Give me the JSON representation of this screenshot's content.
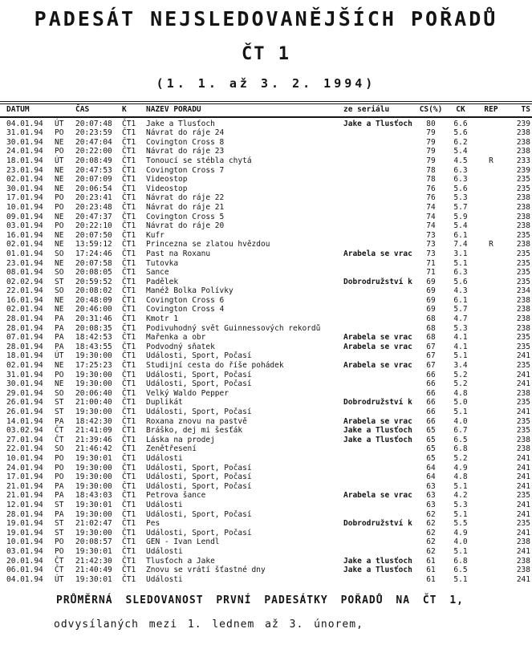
{
  "document": {
    "title_line1": "PADESÁT NEJSLEDOVANĚJŠÍCH POŘADŮ",
    "title_line2": "ČT 1",
    "title_line3": "(1. 1. až 3. 2. 1994)"
  },
  "footer": {
    "line1": "PRŮMĚRNÁ SLEDOVANOST PRVNÍ PADESÁTKY POŘADŮ NA ČT 1,",
    "line2": "odvysílaných mezi 1. lednem až 3. únorem,"
  },
  "table": {
    "columns": {
      "datum": "DATUM",
      "den": "",
      "cas": "ČAS",
      "k": "K",
      "nazev": "NAZEV POŘADU",
      "serial": "ze seriálu",
      "cs": "CS(%)",
      "ck": "CK",
      "rep": "REP",
      "ts": "TS"
    },
    "rows": [
      {
        "datum": "04.01.94",
        "den": "ÚT",
        "cas": "20:07:48",
        "k": "ČT1",
        "nazev": "Jake a Tlusťoch",
        "serial": "Jake a Tlusťoch",
        "cs": "80",
        "ck": "6.6",
        "rep": "",
        "ts": "239"
      },
      {
        "datum": "31.01.94",
        "den": "PO",
        "cas": "20:23:59",
        "k": "ČT1",
        "nazev": "Návrat do ráje 24",
        "serial": "",
        "cs": "79",
        "ck": "5.6",
        "rep": "",
        "ts": "238"
      },
      {
        "datum": "30.01.94",
        "den": "NE",
        "cas": "20:47:04",
        "k": "ČT1",
        "nazev": "Covington Cross 8",
        "serial": "",
        "cs": "79",
        "ck": "6.2",
        "rep": "",
        "ts": "238"
      },
      {
        "datum": "24.01.94",
        "den": "PO",
        "cas": "20:22:00",
        "k": "ČT1",
        "nazev": "Návrat do ráje 23",
        "serial": "",
        "cs": "79",
        "ck": "5.4",
        "rep": "",
        "ts": "238"
      },
      {
        "datum": "18.01.94",
        "den": "ÚT",
        "cas": "20:08:49",
        "k": "ČT1",
        "nazev": "Tonoucí se stébla chytá",
        "serial": "",
        "cs": "79",
        "ck": "4.5",
        "rep": "R",
        "ts": "233"
      },
      {
        "datum": "23.01.94",
        "den": "NE",
        "cas": "20:47:53",
        "k": "ČT1",
        "nazev": "Covington Cross 7",
        "serial": "",
        "cs": "78",
        "ck": "6.3",
        "rep": "",
        "ts": "239"
      },
      {
        "datum": "02.01.94",
        "den": "NE",
        "cas": "20:07:09",
        "k": "ČT1",
        "nazev": "Videostop",
        "serial": "",
        "cs": "78",
        "ck": "6.3",
        "rep": "",
        "ts": "235"
      },
      {
        "datum": "30.01.94",
        "den": "NE",
        "cas": "20:06:54",
        "k": "ČT1",
        "nazev": "Videostop",
        "serial": "",
        "cs": "76",
        "ck": "5.6",
        "rep": "",
        "ts": "235"
      },
      {
        "datum": "17.01.94",
        "den": "PO",
        "cas": "20:23:41",
        "k": "ČT1",
        "nazev": "Návrat do ráje 22",
        "serial": "",
        "cs": "76",
        "ck": "5.3",
        "rep": "",
        "ts": "238"
      },
      {
        "datum": "10.01.94",
        "den": "PO",
        "cas": "20:23:48",
        "k": "ČT1",
        "nazev": "Návrat do ráje 21",
        "serial": "",
        "cs": "74",
        "ck": "5.7",
        "rep": "",
        "ts": "238"
      },
      {
        "datum": "09.01.94",
        "den": "NE",
        "cas": "20:47:37",
        "k": "ČT1",
        "nazev": "Covington Cross 5",
        "serial": "",
        "cs": "74",
        "ck": "5.9",
        "rep": "",
        "ts": "238"
      },
      {
        "datum": "03.01.94",
        "den": "PO",
        "cas": "20:22:10",
        "k": "ČT1",
        "nazev": "Návrat do ráje 20",
        "serial": "",
        "cs": "74",
        "ck": "5.4",
        "rep": "",
        "ts": "238"
      },
      {
        "datum": "16.01.94",
        "den": "NE",
        "cas": "20:07:50",
        "k": "ČT1",
        "nazev": "Kufr",
        "serial": "",
        "cs": "73",
        "ck": "6.1",
        "rep": "",
        "ts": "235"
      },
      {
        "datum": "02.01.94",
        "den": "NE",
        "cas": "13:59:12",
        "k": "ČT1",
        "nazev": "Princezna se zlatou hvězdou",
        "serial": "",
        "cs": "73",
        "ck": "7.4",
        "rep": "R",
        "ts": "238"
      },
      {
        "datum": "01.01.94",
        "den": "SO",
        "cas": "17:24:46",
        "k": "ČT1",
        "nazev": "Past na Roxanu",
        "serial": "Arabela se vrac",
        "cs": "73",
        "ck": "3.1",
        "rep": "",
        "ts": "235"
      },
      {
        "datum": "23.01.94",
        "den": "NE",
        "cas": "20:07:58",
        "k": "ČT1",
        "nazev": "Tutovka",
        "serial": "",
        "cs": "71",
        "ck": "5.1",
        "rep": "",
        "ts": "235"
      },
      {
        "datum": "08.01.94",
        "den": "SO",
        "cas": "20:08:05",
        "k": "ČT1",
        "nazev": "Šance",
        "serial": "",
        "cs": "71",
        "ck": "6.3",
        "rep": "",
        "ts": "235"
      },
      {
        "datum": "02.02.94",
        "den": "ST",
        "cas": "20:59:52",
        "k": "ČT1",
        "nazev": "Padělek",
        "serial": "Dobrodružství k",
        "cs": "69",
        "ck": "5.6",
        "rep": "",
        "ts": "235"
      },
      {
        "datum": "22.01.94",
        "den": "SO",
        "cas": "20:08:02",
        "k": "ČT1",
        "nazev": "Manéž Bolka Polívky",
        "serial": "",
        "cs": "69",
        "ck": "4.3",
        "rep": "",
        "ts": "234"
      },
      {
        "datum": "16.01.94",
        "den": "NE",
        "cas": "20:48:09",
        "k": "ČT1",
        "nazev": "Covington Cross 6",
        "serial": "",
        "cs": "69",
        "ck": "6.1",
        "rep": "",
        "ts": "238"
      },
      {
        "datum": "02.01.94",
        "den": "NE",
        "cas": "20:46:00",
        "k": "ČT1",
        "nazev": "Covington Cross 4",
        "serial": "",
        "cs": "69",
        "ck": "5.7",
        "rep": "",
        "ts": "238"
      },
      {
        "datum": "28.01.94",
        "den": "PA",
        "cas": "20:31:46",
        "k": "ČT1",
        "nazev": "Kmotr 1",
        "serial": "",
        "cs": "68",
        "ck": "4.7",
        "rep": "",
        "ts": "238"
      },
      {
        "datum": "28.01.94",
        "den": "PA",
        "cas": "20:08:35",
        "k": "ČT1",
        "nazev": "Podivuhodný svět Guinnessových rekordů",
        "serial": "",
        "cs": "68",
        "ck": "5.3",
        "rep": "",
        "ts": "238"
      },
      {
        "datum": "07.01.94",
        "den": "PA",
        "cas": "18:42:53",
        "k": "ČT1",
        "nazev": "Mařenka a obr",
        "serial": "Arabela se vrac",
        "cs": "68",
        "ck": "4.1",
        "rep": "",
        "ts": "235"
      },
      {
        "datum": "28.01.94",
        "den": "PA",
        "cas": "18:43:55",
        "k": "ČT1",
        "nazev": "Podvodný sňatek",
        "serial": "Arabela se vrac",
        "cs": "67",
        "ck": "4.1",
        "rep": "",
        "ts": "235"
      },
      {
        "datum": "18.01.94",
        "den": "ÚT",
        "cas": "19:30:00",
        "k": "ČT1",
        "nazev": "Události, Sport, Počasí",
        "serial": "",
        "cs": "67",
        "ck": "5.1",
        "rep": "",
        "ts": "241"
      },
      {
        "datum": "02.01.94",
        "den": "NE",
        "cas": "17:25:23",
        "k": "ČT1",
        "nazev": "Studijní cesta do říše pohádek",
        "serial": "Arabela se vrac",
        "cs": "67",
        "ck": "3.4",
        "rep": "",
        "ts": "235"
      },
      {
        "datum": "31.01.94",
        "den": "PO",
        "cas": "19:30:00",
        "k": "ČT1",
        "nazev": "Události, Sport, Počasí",
        "serial": "",
        "cs": "66",
        "ck": "5.2",
        "rep": "",
        "ts": "241"
      },
      {
        "datum": "30.01.94",
        "den": "NE",
        "cas": "19:30:00",
        "k": "ČT1",
        "nazev": "Události, Sport, Počasí",
        "serial": "",
        "cs": "66",
        "ck": "5.2",
        "rep": "",
        "ts": "241"
      },
      {
        "datum": "29.01.94",
        "den": "SO",
        "cas": "20:06:40",
        "k": "ČT1",
        "nazev": "Velký Waldo Pepper",
        "serial": "",
        "cs": "66",
        "ck": "4.8",
        "rep": "",
        "ts": "238"
      },
      {
        "datum": "26.01.94",
        "den": "ST",
        "cas": "21:00:40",
        "k": "ČT1",
        "nazev": "Duplikát",
        "serial": "Dobrodružství k",
        "cs": "66",
        "ck": "5.0",
        "rep": "",
        "ts": "235"
      },
      {
        "datum": "26.01.94",
        "den": "ST",
        "cas": "19:30:00",
        "k": "ČT1",
        "nazev": "Události, Sport, Počasí",
        "serial": "",
        "cs": "66",
        "ck": "5.1",
        "rep": "",
        "ts": "241"
      },
      {
        "datum": "14.01.94",
        "den": "PA",
        "cas": "18:42:30",
        "k": "ČT1",
        "nazev": "Roxana znovu na pastvě",
        "serial": "Arabela se vrac",
        "cs": "66",
        "ck": "4.0",
        "rep": "",
        "ts": "235"
      },
      {
        "datum": "03.02.94",
        "den": "ČT",
        "cas": "21:41:09",
        "k": "ČT1",
        "nazev": "Bráško, dej mi šesťák",
        "serial": "Jake a Tlusťoch",
        "cs": "65",
        "ck": "6.7",
        "rep": "",
        "ts": "235"
      },
      {
        "datum": "27.01.94",
        "den": "ČT",
        "cas": "21:39:46",
        "k": "ČT1",
        "nazev": "Láska na prodej",
        "serial": "Jake a Tlusťoch",
        "cs": "65",
        "ck": "6.5",
        "rep": "",
        "ts": "238"
      },
      {
        "datum": "22.01.94",
        "den": "SO",
        "cas": "21:46:42",
        "k": "ČT1",
        "nazev": "Ženětřesení",
        "serial": "",
        "cs": "65",
        "ck": "6.8",
        "rep": "",
        "ts": "238"
      },
      {
        "datum": "10.01.94",
        "den": "PO",
        "cas": "19:30:01",
        "k": "ČT1",
        "nazev": "Události",
        "serial": "",
        "cs": "65",
        "ck": "5.2",
        "rep": "",
        "ts": "241"
      },
      {
        "datum": "24.01.94",
        "den": "PO",
        "cas": "19:30:00",
        "k": "ČT1",
        "nazev": "Události, Sport, Počasí",
        "serial": "",
        "cs": "64",
        "ck": "4.9",
        "rep": "",
        "ts": "241"
      },
      {
        "datum": "17.01.94",
        "den": "PO",
        "cas": "19:30:00",
        "k": "ČT1",
        "nazev": "Události, Sport, Počasí",
        "serial": "",
        "cs": "64",
        "ck": "4.8",
        "rep": "",
        "ts": "241"
      },
      {
        "datum": "21.01.94",
        "den": "PA",
        "cas": "19:30:00",
        "k": "ČT1",
        "nazev": "Události, Sport, Počasí",
        "serial": "",
        "cs": "63",
        "ck": "5.1",
        "rep": "",
        "ts": "241"
      },
      {
        "datum": "21.01.94",
        "den": "PA",
        "cas": "18:43:03",
        "k": "ČT1",
        "nazev": "Petrova šance",
        "serial": "Arabela se vrac",
        "cs": "63",
        "ck": "4.2",
        "rep": "",
        "ts": "235"
      },
      {
        "datum": "12.01.94",
        "den": "ST",
        "cas": "19:30:01",
        "k": "ČT1",
        "nazev": "Události",
        "serial": "",
        "cs": "63",
        "ck": "5.3",
        "rep": "",
        "ts": "241"
      },
      {
        "datum": "28.01.94",
        "den": "PA",
        "cas": "19:30:00",
        "k": "ČT1",
        "nazev": "Události, Sport, Počasí",
        "serial": "",
        "cs": "62",
        "ck": "5.1",
        "rep": "",
        "ts": "241"
      },
      {
        "datum": "19.01.94",
        "den": "ST",
        "cas": "21:02:47",
        "k": "ČT1",
        "nazev": "Pes",
        "serial": "Dobrodružství k",
        "cs": "62",
        "ck": "5.5",
        "rep": "",
        "ts": "235"
      },
      {
        "datum": "19.01.94",
        "den": "ST",
        "cas": "19:30:00",
        "k": "ČT1",
        "nazev": "Události, Sport, Počasí",
        "serial": "",
        "cs": "62",
        "ck": "4.9",
        "rep": "",
        "ts": "241"
      },
      {
        "datum": "10.01.94",
        "den": "PO",
        "cas": "20:08:57",
        "k": "ČT1",
        "nazev": "GEN - Ivan Lendl",
        "serial": "",
        "cs": "62",
        "ck": "4.0",
        "rep": "",
        "ts": "238"
      },
      {
        "datum": "03.01.94",
        "den": "PO",
        "cas": "19:30:01",
        "k": "ČT1",
        "nazev": "Události",
        "serial": "",
        "cs": "62",
        "ck": "5.1",
        "rep": "",
        "ts": "241"
      },
      {
        "datum": "20.01.94",
        "den": "ČT",
        "cas": "21:42:30",
        "k": "ČT1",
        "nazev": "Tlusťoch a Jake",
        "serial": "Jake a tlusťoch",
        "cs": "61",
        "ck": "6.8",
        "rep": "",
        "ts": "238"
      },
      {
        "datum": "06.01.94",
        "den": "ČT",
        "cas": "21:40:49",
        "k": "ČT1",
        "nazev": "Znovu se vrátí šťastné dny",
        "serial": "Jake a Tlusťoch",
        "cs": "61",
        "ck": "6.5",
        "rep": "",
        "ts": "238"
      },
      {
        "datum": "04.01.94",
        "den": "ÚT",
        "cas": "19:30:01",
        "k": "ČT1",
        "nazev": "Události",
        "serial": "",
        "cs": "61",
        "ck": "5.1",
        "rep": "",
        "ts": "241"
      }
    ]
  }
}
